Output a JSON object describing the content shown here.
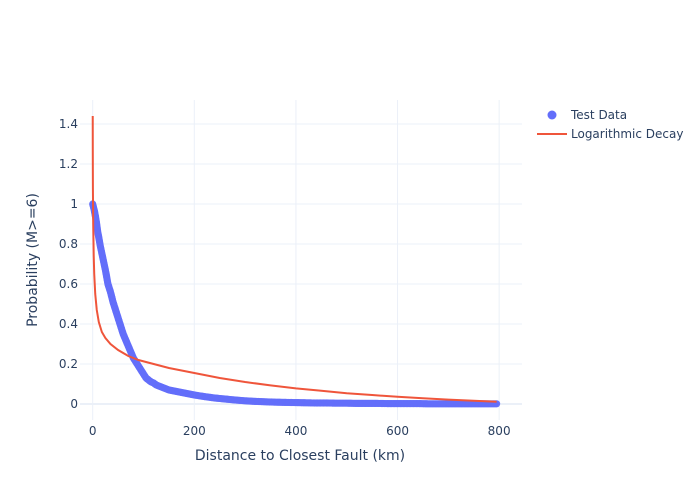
{
  "chart_data": {
    "type": "scatter",
    "title": "",
    "xlabel": "Distance to Closest Fault (km)",
    "ylabel": "Probability (M>=6)",
    "xlim": [
      -25,
      845
    ],
    "ylim": [
      -0.08,
      1.52
    ],
    "grid": true,
    "legend_placement": "top-right",
    "x_ticks": [
      {
        "value": 0,
        "label": "0"
      },
      {
        "value": 200,
        "label": "200"
      },
      {
        "value": 400,
        "label": "400"
      },
      {
        "value": 600,
        "label": "600"
      },
      {
        "value": 800,
        "label": "800"
      }
    ],
    "y_ticks": [
      {
        "value": 0,
        "label": "0"
      },
      {
        "value": 0.2,
        "label": "0.2"
      },
      {
        "value": 0.4,
        "label": "0.4"
      },
      {
        "value": 0.6,
        "label": "0.6"
      },
      {
        "value": 0.8,
        "label": "0.8"
      },
      {
        "value": 1.0,
        "label": "1"
      },
      {
        "value": 1.2,
        "label": "1.2"
      },
      {
        "value": 1.4,
        "label": "1.4"
      }
    ],
    "series": [
      {
        "name": "Test Data",
        "kind": "markers",
        "color": "#636efa",
        "x": [
          0,
          3,
          6,
          10,
          15,
          20,
          25,
          30,
          35,
          40,
          45,
          50,
          55,
          60,
          65,
          70,
          75,
          80,
          85,
          90,
          95,
          100,
          105,
          110,
          115,
          120,
          125,
          130,
          140,
          150,
          160,
          170,
          180,
          190,
          200,
          220,
          240,
          260,
          280,
          300,
          320,
          340,
          360,
          380,
          400,
          420,
          440,
          460,
          480,
          500,
          520,
          540,
          560,
          580,
          600,
          620,
          640,
          660,
          680,
          700,
          720,
          740,
          760,
          780,
          795
        ],
        "y": [
          1.0,
          0.97,
          0.93,
          0.86,
          0.79,
          0.73,
          0.67,
          0.6,
          0.56,
          0.51,
          0.47,
          0.43,
          0.39,
          0.35,
          0.32,
          0.29,
          0.26,
          0.23,
          0.21,
          0.19,
          0.17,
          0.15,
          0.13,
          0.12,
          0.11,
          0.105,
          0.095,
          0.09,
          0.08,
          0.07,
          0.065,
          0.06,
          0.055,
          0.05,
          0.045,
          0.037,
          0.03,
          0.025,
          0.02,
          0.016,
          0.013,
          0.011,
          0.009,
          0.008,
          0.007,
          0.006,
          0.005,
          0.005,
          0.004,
          0.004,
          0.003,
          0.003,
          0.003,
          0.002,
          0.002,
          0.002,
          0.002,
          0.001,
          0.001,
          0.001,
          0.001,
          0.001,
          0.001,
          0.001,
          0.001
        ]
      },
      {
        "name": "Logarithmic Decay",
        "kind": "line",
        "color": "#ef553b",
        "x": [
          0.05,
          0.15,
          0.4,
          1,
          2,
          3,
          5,
          8,
          12,
          18,
          25,
          35,
          50,
          70,
          90,
          120,
          150,
          200,
          250,
          300,
          350,
          400,
          450,
          500,
          550,
          600,
          650,
          700,
          750,
          795
        ],
        "y": [
          1.44,
          1.27,
          1.08,
          0.9,
          0.74,
          0.65,
          0.55,
          0.47,
          0.41,
          0.36,
          0.33,
          0.3,
          0.27,
          0.24,
          0.22,
          0.2,
          0.18,
          0.155,
          0.13,
          0.11,
          0.093,
          0.078,
          0.066,
          0.054,
          0.045,
          0.036,
          0.029,
          0.022,
          0.016,
          0.011
        ]
      }
    ]
  }
}
